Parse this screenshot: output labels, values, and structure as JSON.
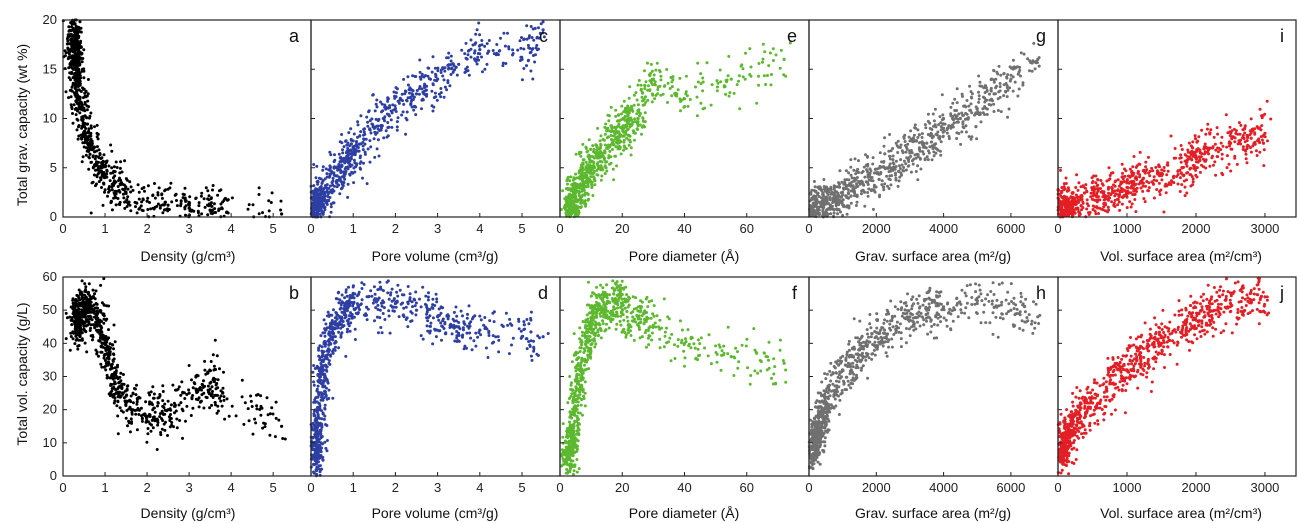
{
  "figure": {
    "rows": [
      {
        "ylabel": "Total grav. capacity (wt %)",
        "ylim": [
          0,
          20
        ],
        "yticks": [
          0,
          5,
          10,
          15,
          20
        ]
      },
      {
        "ylabel": "Total vol. capacity (g/L)",
        "ylim": [
          0,
          60
        ],
        "yticks": [
          0,
          10,
          20,
          30,
          40,
          50,
          60
        ]
      }
    ],
    "columns": [
      {
        "xlabel": "Density (g/cm³)",
        "xlim": [
          0,
          5.9
        ],
        "xticks": [
          0,
          1,
          2,
          3,
          4,
          5
        ]
      },
      {
        "xlabel": "Pore volume (cm³/g)",
        "xlim": [
          0,
          5.9
        ],
        "xticks": [
          0,
          1,
          2,
          3,
          4,
          5
        ]
      },
      {
        "xlabel": "Pore diameter (Å)",
        "xlim": [
          0,
          80
        ],
        "xticks": [
          0,
          20,
          40,
          60
        ]
      },
      {
        "xlabel": "Grav. surface area (m²/g)",
        "xlim": [
          0,
          7400
        ],
        "xticks": [
          0,
          2000,
          4000,
          6000
        ]
      },
      {
        "xlabel": "Vol. surface area (m²/cm³)",
        "xlim": [
          0,
          3450
        ],
        "xticks": [
          0,
          1000,
          2000,
          3000
        ]
      }
    ]
  },
  "chart_data": [
    {
      "panel": "a",
      "type": "scatter",
      "color": "#000000",
      "xlabel": "Density (g/cm³)",
      "ylabel": "Total grav. capacity (wt %)",
      "x": [
        0.25,
        0.3,
        0.35,
        0.4,
        0.5,
        0.6,
        0.8,
        1.0,
        1.2,
        1.5,
        2.0,
        2.5,
        3.0,
        3.5,
        3.9,
        5.2
      ],
      "y": [
        19.0,
        16.5,
        14.0,
        12.0,
        9.5,
        7.5,
        5.5,
        4.0,
        3.2,
        2.4,
        1.6,
        1.2,
        0.9,
        0.7,
        0.5,
        0.3
      ],
      "ylim": [
        0,
        20
      ],
      "xlim": [
        0,
        5.9
      ]
    },
    {
      "panel": "b",
      "type": "scatter",
      "color": "#000000",
      "xlabel": "Density (g/cm³)",
      "ylabel": "Total vol. capacity (g/L)",
      "x": [
        0.3,
        0.5,
        0.8,
        1.0,
        1.2,
        1.5,
        2.0,
        2.5,
        3.0,
        3.5,
        3.8,
        5.2
      ],
      "y": [
        45,
        52,
        48,
        40,
        30,
        22,
        18,
        20,
        25,
        28,
        25,
        15
      ],
      "ylim": [
        0,
        60
      ],
      "xlim": [
        0,
        5.9
      ]
    },
    {
      "panel": "c",
      "type": "scatter",
      "color": "#2e3fa3",
      "xlabel": "Pore volume (cm³/g)",
      "ylabel": "Total grav. capacity (wt %)",
      "x": [
        0.05,
        0.2,
        0.5,
        0.8,
        1.0,
        1.5,
        2.0,
        2.5,
        3.0,
        3.5,
        4.0,
        5.0,
        5.5
      ],
      "y": [
        0.3,
        1.5,
        3.5,
        5.5,
        6.5,
        9.0,
        11.0,
        12.5,
        14.0,
        15.5,
        17.0,
        16.0,
        19.0
      ],
      "ylim": [
        0,
        20
      ],
      "xlim": [
        0,
        5.9
      ]
    },
    {
      "panel": "d",
      "type": "scatter",
      "color": "#2e3fa3",
      "xlabel": "Pore volume (cm³/g)",
      "ylabel": "Total vol. capacity (g/L)",
      "x": [
        0.1,
        0.2,
        0.3,
        0.5,
        0.8,
        1.0,
        1.5,
        2.0,
        2.5,
        3.0,
        3.5,
        4.0,
        5.0,
        5.5
      ],
      "y": [
        5,
        20,
        35,
        45,
        50,
        52,
        53,
        52,
        50,
        48,
        45,
        44,
        42,
        42
      ],
      "ylim": [
        0,
        60
      ],
      "xlim": [
        0,
        5.9
      ]
    },
    {
      "panel": "e",
      "type": "scatter",
      "color": "#5cb82e",
      "xlabel": "Pore diameter (Å)",
      "ylabel": "Total grav. capacity (wt %)",
      "x": [
        3,
        5,
        8,
        10,
        12,
        15,
        18,
        20,
        22,
        25,
        30,
        40,
        55,
        72
      ],
      "y": [
        0.5,
        2,
        4,
        5,
        6,
        7,
        8,
        9,
        10,
        10,
        14,
        12,
        14,
        16
      ],
      "ylim": [
        0,
        20
      ],
      "xlim": [
        0,
        80
      ]
    },
    {
      "panel": "f",
      "type": "scatter",
      "color": "#5cb82e",
      "xlabel": "Pore diameter (Å)",
      "ylabel": "Total vol. capacity (g/L)",
      "x": [
        3,
        5,
        7,
        10,
        12,
        15,
        18,
        20,
        25,
        30,
        40,
        55,
        72
      ],
      "y": [
        5,
        20,
        35,
        45,
        50,
        52,
        53,
        50,
        48,
        45,
        40,
        36,
        34
      ],
      "ylim": [
        0,
        60
      ],
      "xlim": [
        0,
        80
      ]
    },
    {
      "panel": "g",
      "type": "scatter",
      "color": "#707070",
      "xlabel": "Grav. surface area (m²/g)",
      "ylabel": "Total grav. capacity (wt %)",
      "x": [
        100,
        500,
        1000,
        1500,
        2000,
        2500,
        3000,
        3500,
        4000,
        4500,
        5000,
        5500,
        6000,
        6800
      ],
      "y": [
        0.5,
        1.5,
        2.5,
        3.5,
        4.5,
        5.5,
        6.5,
        7.5,
        9.0,
        10.0,
        11.0,
        12.5,
        14.0,
        16.0
      ],
      "ylim": [
        0,
        20
      ],
      "xlim": [
        0,
        7400
      ]
    },
    {
      "panel": "h",
      "type": "scatter",
      "color": "#707070",
      "xlabel": "Grav. surface area (m²/g)",
      "ylabel": "Total vol. capacity (g/L)",
      "x": [
        100,
        300,
        500,
        1000,
        1500,
        2000,
        2500,
        3000,
        3500,
        4000,
        5000,
        6000,
        6800
      ],
      "y": [
        8,
        15,
        22,
        32,
        38,
        42,
        45,
        48,
        50,
        51,
        52,
        50,
        48
      ],
      "ylim": [
        0,
        60
      ],
      "xlim": [
        0,
        7400
      ]
    },
    {
      "panel": "i",
      "type": "scatter",
      "color": "#e31e24",
      "xlabel": "Vol. surface area (m²/cm³)",
      "ylabel": "Total grav. capacity (wt %)",
      "x": [
        50,
        200,
        500,
        800,
        1000,
        1200,
        1500,
        1800,
        2000,
        2200,
        2500,
        2800,
        3000
      ],
      "y": [
        0.5,
        1.0,
        1.8,
        2.5,
        3.0,
        3.5,
        4.2,
        5.0,
        6.0,
        7.0,
        7.5,
        8.0,
        8.5
      ],
      "ylim": [
        0,
        20
      ],
      "xlim": [
        0,
        3450
      ]
    },
    {
      "panel": "j",
      "type": "scatter",
      "color": "#e31e24",
      "xlabel": "Vol. surface area (m²/cm³)",
      "ylabel": "Total vol. capacity (g/L)",
      "x": [
        50,
        200,
        500,
        800,
        1000,
        1200,
        1500,
        1800,
        2000,
        2200,
        2500,
        2800,
        3000
      ],
      "y": [
        8,
        15,
        22,
        28,
        32,
        36,
        40,
        44,
        47,
        50,
        52,
        53,
        54
      ],
      "ylim": [
        0,
        60
      ],
      "xlim": [
        0,
        3450
      ]
    }
  ]
}
